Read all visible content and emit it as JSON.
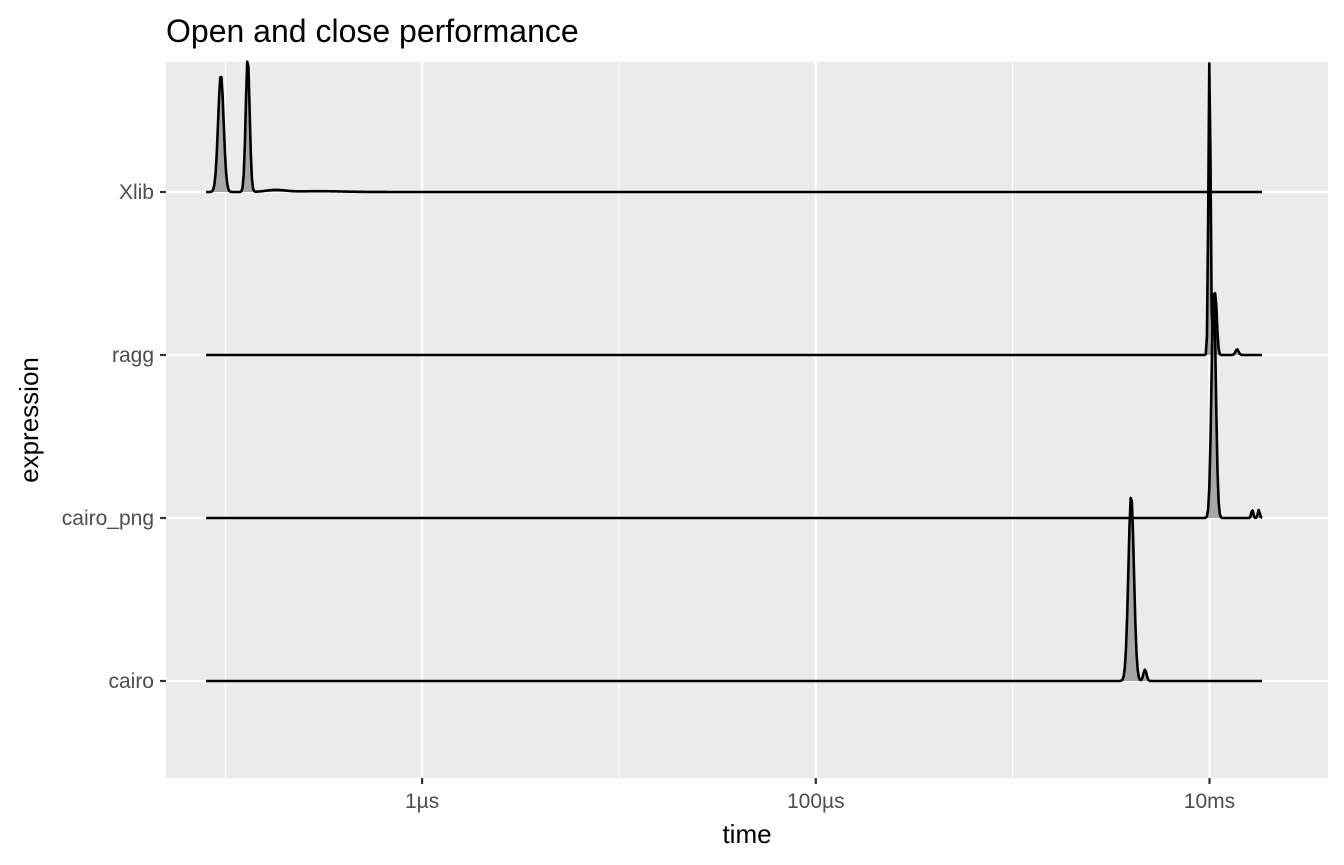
{
  "chart_data": {
    "type": "ridgeline",
    "title": "Open and close performance",
    "xlabel": "time",
    "ylabel": "expression",
    "x_scale": "log10",
    "x_unit": "seconds",
    "xlim": [
      5e-08,
      0.04
    ],
    "x_data_range": [
      8e-08,
      0.0185
    ],
    "x_ticks": [
      {
        "value": 1e-06,
        "label": "1µs"
      },
      {
        "value": 0.0001,
        "label": "100µs"
      },
      {
        "value": 0.01,
        "label": "10ms"
      }
    ],
    "x_minor_ticks": [
      1e-07,
      1e-05,
      0.001
    ],
    "categories": [
      "cairo",
      "cairo_png",
      "ragg",
      "Xlib"
    ],
    "series": [
      {
        "name": "Xlib",
        "peaks": [
          {
            "x": 9.5e-08,
            "h": 0.72,
            "w": 0.014
          },
          {
            "x": 1.3e-07,
            "h": 0.82,
            "w": 0.01
          },
          {
            "x": 1.8e-07,
            "h": 0.012,
            "w": 0.05
          },
          {
            "x": 3e-07,
            "h": 0.005,
            "w": 0.12
          }
        ]
      },
      {
        "name": "ragg",
        "peaks": [
          {
            "x": 0.01,
            "h": 1.82,
            "w": 0.0055
          },
          {
            "x": 0.0107,
            "h": 0.38,
            "w": 0.008
          },
          {
            "x": 0.0138,
            "h": 0.035,
            "w": 0.008
          }
        ]
      },
      {
        "name": "cairo_png",
        "peaks": [
          {
            "x": 0.0105,
            "h": 1.39,
            "w": 0.011
          },
          {
            "x": 0.0165,
            "h": 0.05,
            "w": 0.005
          },
          {
            "x": 0.0178,
            "h": 0.05,
            "w": 0.005
          }
        ]
      },
      {
        "name": "cairo",
        "peaks": [
          {
            "x": 0.004,
            "h": 1.14,
            "w": 0.014
          },
          {
            "x": 0.0047,
            "h": 0.07,
            "w": 0.008
          }
        ]
      }
    ],
    "grid": true,
    "legend": "none"
  }
}
